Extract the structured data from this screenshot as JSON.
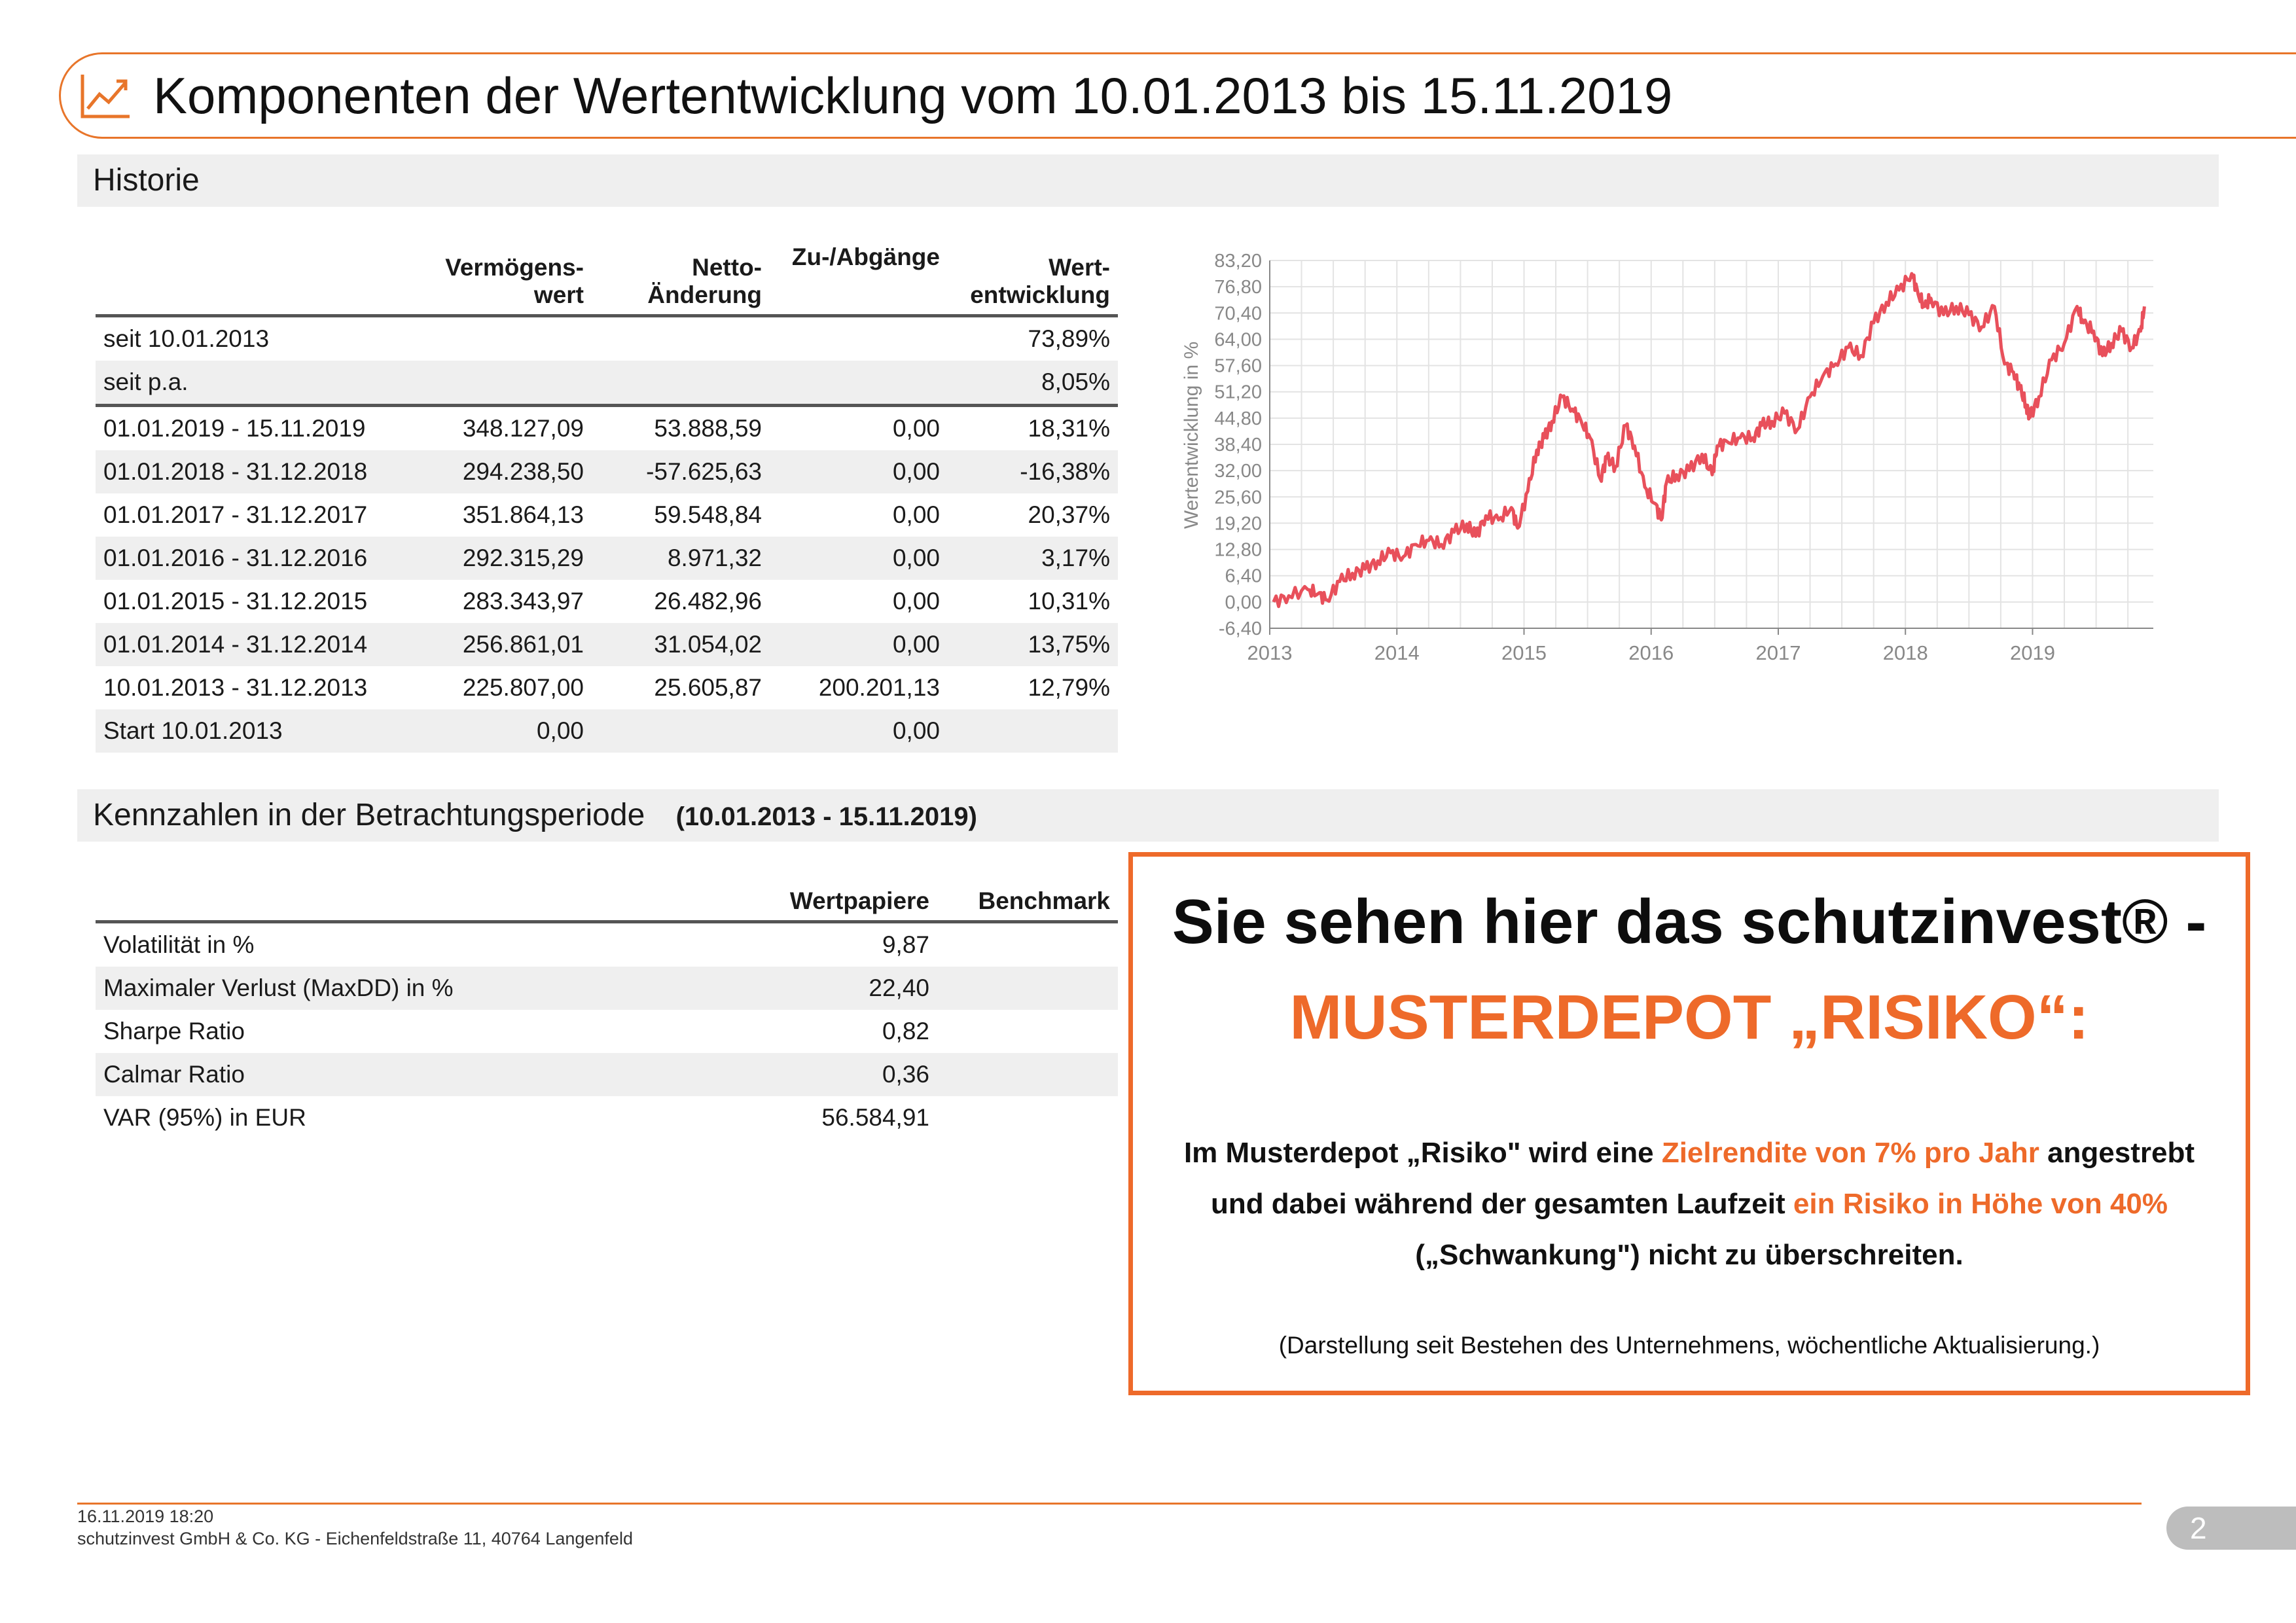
{
  "page": {
    "title": "Komponenten der Wertentwicklung vom 10.01.2013 bis 15.11.2019",
    "accent_color": "#e8752a",
    "icon": "line-chart-icon"
  },
  "historie": {
    "section_title": "Historie",
    "headers": {
      "vermoegenswert": "Vermögens-\nwert",
      "netto_aenderung": "Netto-\nÄnderung",
      "zu_abgaenge": "Zu-/Abgänge",
      "wertentwicklung": "Wert-\nentwicklung"
    },
    "summary_rows": [
      {
        "label": "seit 10.01.2013",
        "wertentwicklung": "73,89%"
      },
      {
        "label": "seit p.a.",
        "wertentwicklung": "8,05%"
      }
    ],
    "rows": [
      {
        "period": "01.01.2019 - 15.11.2019",
        "vermoegenswert": "348.127,09",
        "netto": "53.888,59",
        "zuab": "0,00",
        "wert": "18,31%"
      },
      {
        "period": "01.01.2018 - 31.12.2018",
        "vermoegenswert": "294.238,50",
        "netto": "-57.625,63",
        "zuab": "0,00",
        "wert": "-16,38%"
      },
      {
        "period": "01.01.2017 - 31.12.2017",
        "vermoegenswert": "351.864,13",
        "netto": "59.548,84",
        "zuab": "0,00",
        "wert": "20,37%"
      },
      {
        "period": "01.01.2016 - 31.12.2016",
        "vermoegenswert": "292.315,29",
        "netto": "8.971,32",
        "zuab": "0,00",
        "wert": "3,17%"
      },
      {
        "period": "01.01.2015 - 31.12.2015",
        "vermoegenswert": "283.343,97",
        "netto": "26.482,96",
        "zuab": "0,00",
        "wert": "10,31%"
      },
      {
        "period": "01.01.2014 - 31.12.2014",
        "vermoegenswert": "256.861,01",
        "netto": "31.054,02",
        "zuab": "0,00",
        "wert": "13,75%"
      },
      {
        "period": "10.01.2013 - 31.12.2013",
        "vermoegenswert": "225.807,00",
        "netto": "25.605,87",
        "zuab": "200.201,13",
        "wert": "12,79%"
      },
      {
        "period": "Start 10.01.2013",
        "vermoegenswert": "0,00",
        "netto": "",
        "zuab": "0,00",
        "wert": ""
      }
    ]
  },
  "kennzahlen": {
    "section_title": "Kennzahlen in der Betrachtungsperiode",
    "period": "(10.01.2013 - 15.11.2019)",
    "headers": {
      "wertpapiere": "Wertpapiere",
      "benchmark": "Benchmark"
    },
    "rows": [
      {
        "label": "Volatilität in %",
        "wertpapiere": "9,87",
        "benchmark": ""
      },
      {
        "label": "Maximaler Verlust (MaxDD) in %",
        "wertpapiere": "22,40",
        "benchmark": ""
      },
      {
        "label": "Sharpe Ratio",
        "wertpapiere": "0,82",
        "benchmark": ""
      },
      {
        "label": "Calmar Ratio",
        "wertpapiere": "0,36",
        "benchmark": ""
      },
      {
        "label": "VAR (95%) in EUR",
        "wertpapiere": "56.584,91",
        "benchmark": ""
      }
    ]
  },
  "info_box": {
    "headline": "Sie sehen hier das schutzinvest® -",
    "subheadline": "MUSTERDEPOT „RISIKO“:",
    "body_1": "Im Musterdepot „Risiko\" wird eine ",
    "body_hl_1": "Zielrendite von 7% pro Jahr",
    "body_2": " angestrebt und dabei während der gesamten Laufzeit ",
    "body_hl_2": "ein Risiko in Höhe von 40%",
    "body_3": " („Schwankung\") nicht zu überschreiten.",
    "note": "(Darstellung seit Bestehen des Unternehmens, wöchentliche Aktualisierung.)",
    "accent_color": "#ee6a2a"
  },
  "footer": {
    "date": "16.11.2019 18:20",
    "company": "schutzinvest GmbH & Co. KG - Eichenfeldstraße 11, 40764 Langenfeld",
    "page_number": "2"
  },
  "chart_data": {
    "type": "line",
    "ylabel": "Wertentwicklung in %",
    "xlabel": "",
    "title": "",
    "y_ticks": [
      "83,20",
      "76,80",
      "70,40",
      "64,00",
      "57,60",
      "51,20",
      "44,80",
      "38,40",
      "32,00",
      "25,60",
      "19,20",
      "12,80",
      "6,40",
      "0,00",
      "-6,40"
    ],
    "x_ticks": [
      "2013",
      "2014",
      "2015",
      "2016",
      "2017",
      "2018",
      "2019"
    ],
    "ylim": [
      -6.4,
      83.2
    ],
    "xlim": [
      2013.0,
      2019.95
    ],
    "grid": true,
    "series": [
      {
        "color": "#e8505b",
        "x": [
          2013.03,
          2013.15,
          2013.3,
          2013.38,
          2013.45,
          2013.55,
          2013.65,
          2013.75,
          2013.85,
          2013.95,
          2014.05,
          2014.15,
          2014.25,
          2014.35,
          2014.45,
          2014.55,
          2014.62,
          2014.7,
          2014.8,
          2014.9,
          2014.95,
          2015.03,
          2015.1,
          2015.16,
          2015.22,
          2015.3,
          2015.38,
          2015.45,
          2015.52,
          2015.6,
          2015.65,
          2015.72,
          2015.8,
          2015.87,
          2015.95,
          2016.03,
          2016.08,
          2016.12,
          2016.2,
          2016.3,
          2016.4,
          2016.48,
          2016.52,
          2016.6,
          2016.7,
          2016.8,
          2016.87,
          2016.95,
          2017.05,
          2017.15,
          2017.25,
          2017.35,
          2017.45,
          2017.55,
          2017.65,
          2017.75,
          2017.85,
          2017.95,
          2018.05,
          2018.1,
          2018.15,
          2018.2,
          2018.3,
          2018.4,
          2018.5,
          2018.6,
          2018.7,
          2018.78,
          2018.85,
          2018.9,
          2018.95,
          2018.98,
          2019.05,
          2019.15,
          2019.25,
          2019.35,
          2019.4,
          2019.48,
          2019.55,
          2019.62,
          2019.7,
          2019.78,
          2019.85,
          2019.88
        ],
        "y": [
          0.0,
          1.5,
          3.0,
          2.0,
          0.5,
          5.0,
          7.0,
          8.0,
          10.0,
          12.0,
          11.0,
          14.0,
          15.0,
          14.0,
          17.0,
          19.0,
          16.0,
          21.0,
          20.0,
          23.0,
          18.0,
          27.0,
          37.0,
          40.0,
          44.0,
          50.0,
          47.0,
          44.0,
          40.0,
          30.0,
          35.0,
          33.0,
          43.0,
          38.0,
          28.0,
          24.0,
          20.0,
          29.0,
          31.0,
          32.0,
          36.0,
          31.0,
          38.0,
          39.0,
          40.0,
          40.0,
          43.0,
          44.0,
          46.0,
          42.0,
          50.0,
          55.0,
          58.0,
          62.0,
          60.0,
          68.0,
          73.0,
          76.0,
          80.0,
          75.0,
          72.0,
          74.0,
          70.0,
          72.0,
          70.0,
          67.0,
          72.0,
          58.0,
          56.0,
          52.0,
          48.0,
          45.0,
          50.0,
          59.0,
          63.0,
          72.0,
          68.0,
          66.0,
          60.0,
          63.0,
          66.0,
          62.0,
          66.0,
          72.0
        ]
      }
    ]
  }
}
